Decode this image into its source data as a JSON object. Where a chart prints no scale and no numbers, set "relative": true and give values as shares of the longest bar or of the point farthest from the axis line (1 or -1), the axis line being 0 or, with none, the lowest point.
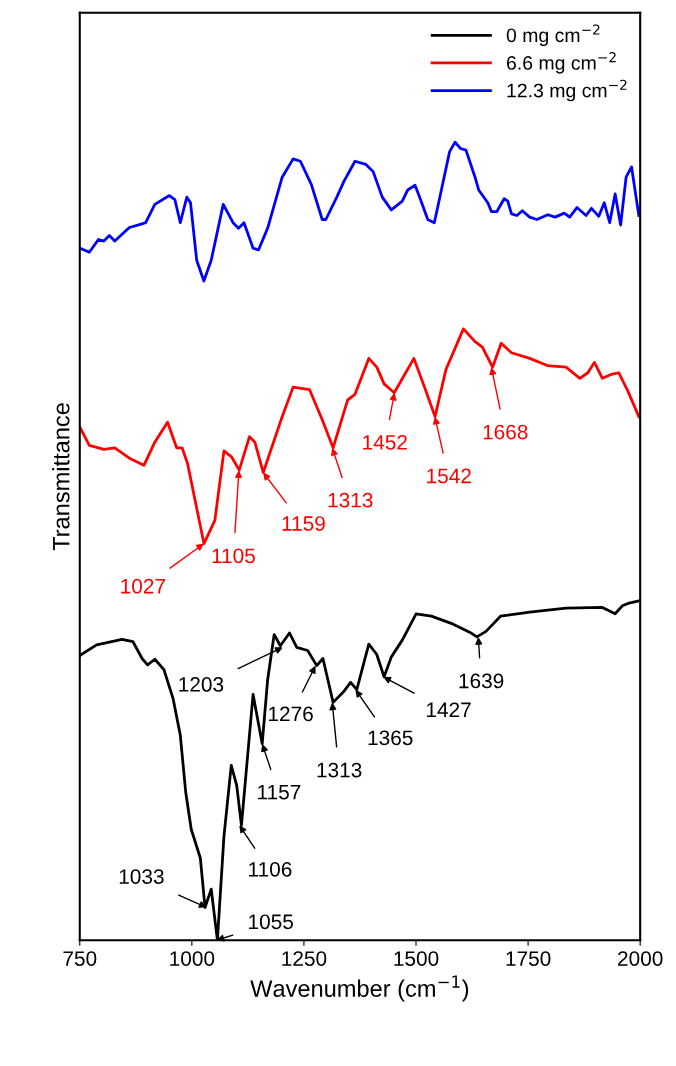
{
  "chart_data": {
    "type": "line",
    "relative": true,
    "xlabel": "Wavenumber (cm$^{−1}$)",
    "ylabel": "Transmittance",
    "xlim": [
      750,
      2000
    ],
    "xticks": [
      750,
      1000,
      1250,
      1500,
      1750,
      2000
    ],
    "legend": "top right",
    "grid": false,
    "tick_labels": "x",
    "series": [
      {
        "name": "0 mg cm$^{−2}$",
        "color": "#000000",
        "x": [
          751.0,
          787.5,
          844.4,
          868.7,
          889.0,
          901.2,
          917.4,
          937.7,
          958.0,
          974.2,
          986.4,
          998.6,
          1018.9,
          1029.4,
          1043.2,
          1057.0,
          1071.6,
          1087.9,
          1100.0,
          1110.6,
          1136.6,
          1156.9,
          1169.0,
          1183.6,
          1197.4,
          1217.7,
          1234.0,
          1258.3,
          1278.6,
          1292.4,
          1315.1,
          1339.5,
          1354.1,
          1367.9,
          1394.7,
          1412.5,
          1428.8,
          1445.0,
          1469.4,
          1500.2,
          1534.3,
          1583.0,
          1619.5,
          1635.8,
          1656.1,
          1688.5,
          1753.5,
          1834.6,
          1915.8,
          1944.2,
          1960.4,
          1972.6,
          1997.0
        ],
        "values": [
          0.357,
          0.37,
          0.377,
          0.374,
          0.353,
          0.345,
          0.352,
          0.339,
          0.303,
          0.257,
          0.185,
          0.139,
          0.103,
          0.041,
          0.064,
          0.0,
          0.13,
          0.219,
          0.194,
          0.144,
          0.308,
          0.246,
          0.326,
          0.383,
          0.369,
          0.385,
          0.367,
          0.363,
          0.344,
          0.353,
          0.298,
          0.312,
          0.323,
          0.314,
          0.371,
          0.358,
          0.33,
          0.355,
          0.376,
          0.409,
          0.406,
          0.396,
          0.386,
          0.38,
          0.387,
          0.406,
          0.411,
          0.416,
          0.417,
          0.409,
          0.419,
          0.422,
          0.425
        ]
      },
      {
        "name": "6.6 mg cm$^{−2}$",
        "color": "#ff0000",
        "x": [
          751.0,
          771.3,
          803.8,
          828.1,
          860.6,
          893.1,
          917.4,
          945.8,
          966.1,
          978.3,
          990.5,
          1027.0,
          1051.3,
          1071.6,
          1087.9,
          1105.7,
          1128.5,
          1140.6,
          1159.3,
          1201.5,
          1225.9,
          1262.4,
          1290.8,
          1315.1,
          1347.6,
          1363.9,
          1394.7,
          1412.5,
          1428.8,
          1451.5,
          1495.3,
          1522.1,
          1542.4,
          1566.8,
          1605.7,
          1631.7,
          1648.0,
          1670.7,
          1690.0,
          1712.9,
          1753.5,
          1793.0,
          1834.6,
          1865.5,
          1883.3,
          1897.9,
          1915.8,
          1936.1,
          1952.3,
          1972.6,
          1997.0
        ],
        "values": [
          0.642,
          0.62,
          0.615,
          0.617,
          0.604,
          0.595,
          0.624,
          0.649,
          0.617,
          0.617,
          0.597,
          0.497,
          0.526,
          0.613,
          0.606,
          0.589,
          0.631,
          0.624,
          0.586,
          0.656,
          0.693,
          0.69,
          0.652,
          0.617,
          0.677,
          0.684,
          0.729,
          0.718,
          0.697,
          0.686,
          0.729,
          0.688,
          0.656,
          0.715,
          0.766,
          0.75,
          0.743,
          0.718,
          0.748,
          0.736,
          0.729,
          0.72,
          0.718,
          0.704,
          0.711,
          0.724,
          0.704,
          0.709,
          0.711,
          0.688,
          0.656
        ]
      },
      {
        "name": "12.3 mg cm$^{−2}$",
        "color": "#0000ff",
        "x": [
          751.0,
          771.3,
          791.6,
          803.8,
          816.0,
          828.1,
          860.6,
          885.0,
          897.1,
          917.4,
          949.9,
          962.1,
          974.2,
          988.8,
          997.0,
          1010.8,
          1026.8,
          1043.2,
          1070.0,
          1091.9,
          1104.1,
          1116.3,
          1136.6,
          1148.7,
          1169.0,
          1201.5,
          1225.9,
          1242.1,
          1266.4,
          1290.8,
          1298.9,
          1323.3,
          1339.5,
          1363.9,
          1388.2,
          1404.4,
          1424.7,
          1445.0,
          1469.4,
          1481.5,
          1497.8,
          1510.0,
          1526.2,
          1540.8,
          1550.5,
          1574.9,
          1587.1,
          1599.3,
          1611.4,
          1631.7,
          1639.8,
          1660.1,
          1668.2,
          1680.4,
          1696.6,
          1704.7,
          1712.9,
          1725.0,
          1737.2,
          1753.5,
          1769.7,
          1794.0,
          1810.3,
          1830.6,
          1842.7,
          1859.0,
          1879.3,
          1891.4,
          1907.7,
          1919.9,
          1932.0,
          1944.2,
          1956.4,
          1968.6,
          1980.7,
          1997.0
        ],
        "values": [
          0.867,
          0.862,
          0.878,
          0.876,
          0.883,
          0.876,
          0.893,
          0.897,
          0.899,
          0.922,
          0.933,
          0.928,
          0.899,
          0.931,
          0.924,
          0.852,
          0.826,
          0.852,
          0.922,
          0.899,
          0.892,
          0.899,
          0.867,
          0.865,
          0.892,
          0.956,
          0.979,
          0.976,
          0.947,
          0.903,
          0.903,
          0.931,
          0.951,
          0.976,
          0.972,
          0.963,
          0.931,
          0.915,
          0.926,
          0.94,
          0.946,
          0.928,
          0.903,
          0.899,
          0.924,
          0.988,
          1.0,
          0.992,
          0.99,
          0.956,
          0.94,
          0.924,
          0.913,
          0.913,
          0.929,
          0.926,
          0.91,
          0.908,
          0.914,
          0.906,
          0.903,
          0.909,
          0.906,
          0.911,
          0.906,
          0.918,
          0.908,
          0.917,
          0.907,
          0.924,
          0.899,
          0.935,
          0.896,
          0.956,
          0.969,
          0.908
        ]
      }
    ],
    "annotations": [
      {
        "text": "1027",
        "x": 1027,
        "y": 0.497
      },
      {
        "text": "1105",
        "x": 1105,
        "y": 0.589
      },
      {
        "text": "1159",
        "x": 1159,
        "y": 0.586
      },
      {
        "text": "1313",
        "x": 1313,
        "y": 0.617
      },
      {
        "text": "1452",
        "x": 1452,
        "y": 0.686
      },
      {
        "text": "1542",
        "x": 1542,
        "y": 0.656
      },
      {
        "text": "1668",
        "x": 1668,
        "y": 0.718
      },
      {
        "text": "1033",
        "x": 1033,
        "y": 0.041
      },
      {
        "text": "1055",
        "x": 1055,
        "y": 0.0
      },
      {
        "text": "1106",
        "x": 1106,
        "y": 0.144
      },
      {
        "text": "1157",
        "x": 1157,
        "y": 0.246
      },
      {
        "text": "1203",
        "x": 1203,
        "y": 0.367
      },
      {
        "text": "1276",
        "x": 1276,
        "y": 0.344
      },
      {
        "text": "1313",
        "x": 1313,
        "y": 0.298
      },
      {
        "text": "1365",
        "x": 1365,
        "y": 0.314
      },
      {
        "text": "1427",
        "x": 1427,
        "y": 0.33
      },
      {
        "text": "1639",
        "x": 1639,
        "y": 0.38
      }
    ]
  }
}
